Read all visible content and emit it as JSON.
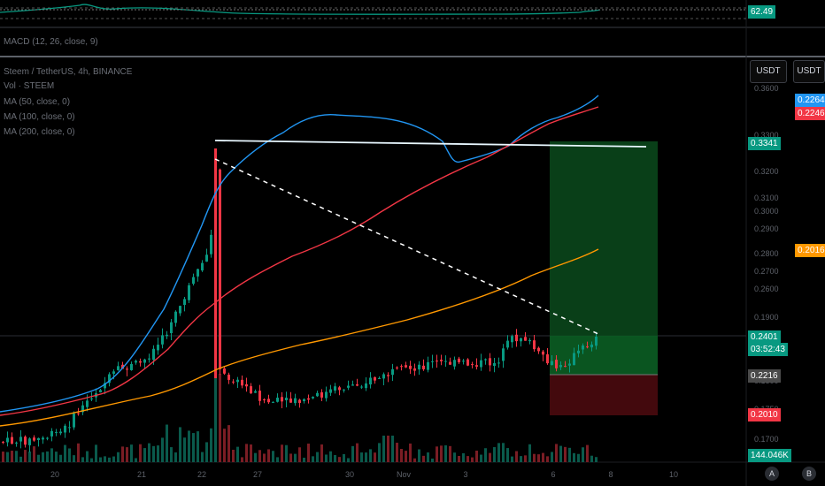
{
  "rsi": {
    "value_label": "62.49",
    "value": 62.49,
    "color": "#089981"
  },
  "macd": {
    "label": "MACD (12, 26, close, 9)"
  },
  "main": {
    "symbol_label": "Steem / TetherUS, 4h, BINANCE",
    "vol_label": "Vol · STEEM",
    "ma50_label": "MA (50, close, 0)",
    "ma100_label": "MA (100, close, 0)",
    "ma200_label": "MA (200, close, 0)"
  },
  "currency_buttons": [
    "USDT",
    "USDT"
  ],
  "price_axis": {
    "ticks": [
      "0.3600",
      "0.3300",
      "0.3200",
      "0.3100",
      "0.3000",
      "0.2900",
      "0.2800",
      "0.2700",
      "0.2600",
      "0.1900",
      "0.1850",
      "0.1800",
      "0.1750",
      "0.1700"
    ],
    "tags": {
      "ma50": {
        "text": "0.2264",
        "color": "#2196f3"
      },
      "ma100": {
        "text": "0.2246",
        "color": "#f23645"
      },
      "target": {
        "text": "0.3341",
        "color": "#089981"
      },
      "ma200": {
        "text": "0.2016",
        "color": "#ff9800"
      },
      "last": {
        "text": "0.2401",
        "color": "#089981"
      },
      "countdown": {
        "text": "03:52:43",
        "color": "#089981"
      },
      "entry": {
        "text": "0.2216",
        "color": "#4a4a4a"
      },
      "stop": {
        "text": "0.2010",
        "color": "#f23645"
      },
      "volume": {
        "text": "144.046K",
        "color": "#089981"
      }
    }
  },
  "time_axis": {
    "labels": [
      "20",
      "21",
      "22",
      "27",
      "30",
      "Nov",
      "3",
      "6",
      "8",
      "10"
    ]
  },
  "bottom_buttons": [
    "A",
    "B"
  ],
  "colors": {
    "up": "#089981",
    "down": "#f23645",
    "ma50": "#2196f3",
    "ma100": "#f23645",
    "ma200": "#ff9800",
    "target_zone": "#0a4a1c",
    "stop_zone": "#4a0a0e"
  }
}
